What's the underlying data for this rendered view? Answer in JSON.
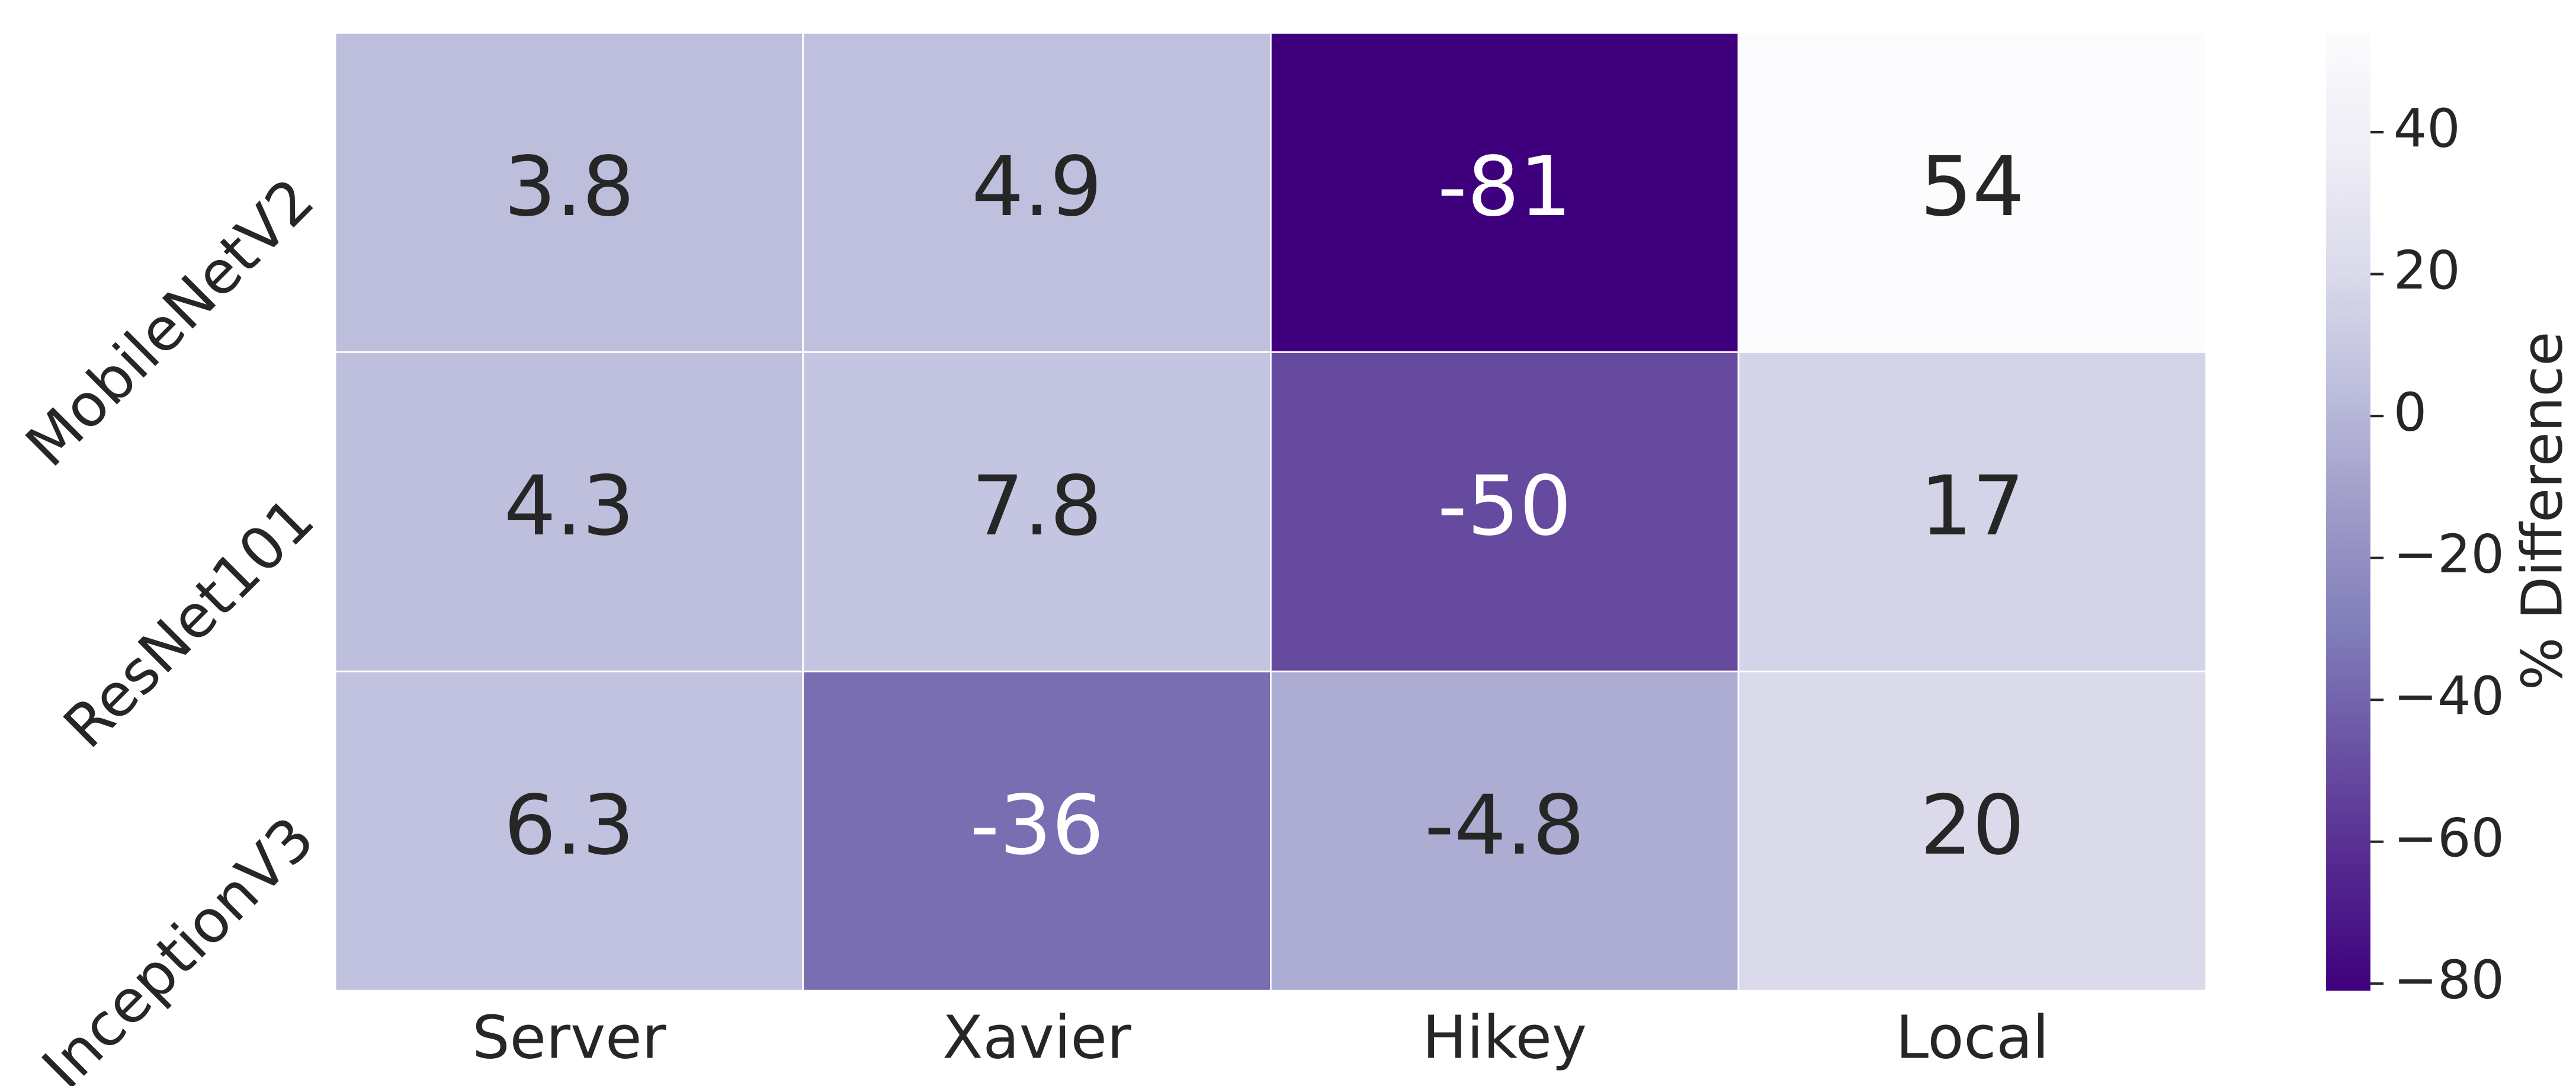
{
  "chart_data": {
    "type": "heatmap",
    "rows": [
      "MobileNetV2",
      "ResNet101",
      "InceptionV3"
    ],
    "columns": [
      "Server",
      "Xavier",
      "Hikey",
      "Local"
    ],
    "values": [
      [
        3.8,
        4.9,
        -81,
        54
      ],
      [
        4.3,
        7.8,
        -50,
        17
      ],
      [
        6.3,
        -36,
        -4.8,
        20
      ]
    ],
    "colormap": [
      "#3f007d",
      "#54278f",
      "#6a51a3",
      "#807dba",
      "#9e9ac8",
      "#bcbddc",
      "#dadaeb",
      "#efedf5",
      "#fcfbfd"
    ],
    "colorbar_label": "% Difference",
    "clim": [
      -81,
      54
    ],
    "cticks": [
      {
        "value": -80,
        "label": "−80"
      },
      {
        "value": -60,
        "label": "−60"
      },
      {
        "value": -40,
        "label": "−40"
      },
      {
        "value": -20,
        "label": "−20"
      },
      0,
      20,
      40
    ]
  }
}
